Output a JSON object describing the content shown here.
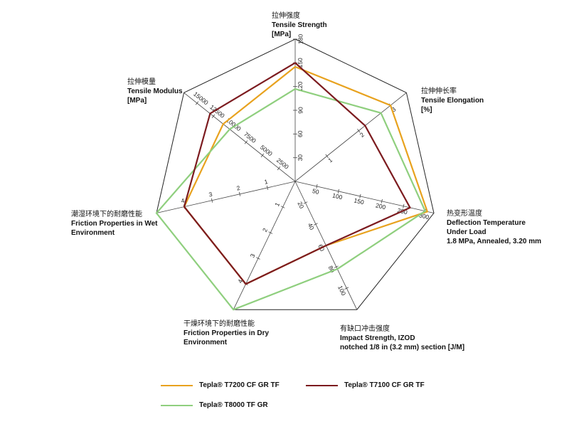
{
  "chart_data": {
    "type": "radar",
    "axes": [
      {
        "key": "tensile_strength",
        "cn": "拉伸强度",
        "lines": [
          "Tensile Strength",
          "[MPa]"
        ],
        "max": 180,
        "ticks": [
          {
            "v": 30,
            "l": "30"
          },
          {
            "v": 60,
            "l": "60"
          },
          {
            "v": 90,
            "l": "90"
          },
          {
            "v": 120,
            "l": "120"
          },
          {
            "v": 150,
            "l": "150"
          },
          {
            "v": 180,
            "l": "180"
          }
        ]
      },
      {
        "key": "tensile_elongation",
        "cn": "拉伸伸长率",
        "lines": [
          "Tensile Elongation",
          "[%]"
        ],
        "max": 3.5,
        "ticks": [
          {
            "v": 1,
            "l": "1"
          },
          {
            "v": 2,
            "l": "2"
          },
          {
            "v": 3,
            "l": "3"
          }
        ]
      },
      {
        "key": "deflection_temperature",
        "cn": "热变形温度",
        "lines": [
          "Deflection Temperature",
          "Under Load",
          "1.8 MPa, Annealed, 3.20 mm"
        ],
        "max": 320,
        "ticks": [
          {
            "v": 50,
            "l": "50"
          },
          {
            "v": 100,
            "l": "100"
          },
          {
            "v": 150,
            "l": "150"
          },
          {
            "v": 200,
            "l": "200"
          },
          {
            "v": 250,
            "l": "250"
          },
          {
            "v": 300,
            "l": "300"
          }
        ]
      },
      {
        "key": "impact_strength",
        "cn": "有缺口冲击强度",
        "lines": [
          "Impact Strength, IZOD",
          "notched 1/8 in (3.2 mm) section [J/M]"
        ],
        "max": 120,
        "ticks": [
          {
            "v": 20,
            "l": "20"
          },
          {
            "v": 40,
            "l": "40"
          },
          {
            "v": 60,
            "l": "60"
          },
          {
            "v": 80,
            "l": "80"
          },
          {
            "v": 100,
            "l": "100"
          }
        ]
      },
      {
        "key": "friction_dry",
        "cn": "干燥环境下的耐磨性能",
        "lines": [
          "Friction Properties in Dry",
          "Environment"
        ],
        "max": 5,
        "ticks": [
          {
            "v": 1,
            "l": "1"
          },
          {
            "v": 2,
            "l": "2"
          },
          {
            "v": 3,
            "l": "3"
          },
          {
            "v": 4,
            "l": "4"
          }
        ]
      },
      {
        "key": "friction_wet",
        "cn": "潮湿环境下的耐磨性能",
        "lines": [
          "Friction Properties in Wet",
          "Environment"
        ],
        "max": 5,
        "ticks": [
          {
            "v": 1,
            "l": "1"
          },
          {
            "v": 2,
            "l": "2"
          },
          {
            "v": 3,
            "l": "3"
          },
          {
            "v": 4,
            "l": "4"
          }
        ]
      },
      {
        "key": "tensile_modulus",
        "cn": "拉伸模量",
        "lines": [
          "Tensile Modulus",
          "[MPa]"
        ],
        "max": 17000,
        "ticks": [
          {
            "v": 2500,
            "l": "2500"
          },
          {
            "v": 5000,
            "l": "5000"
          },
          {
            "v": 7500,
            "l": "7500"
          },
          {
            "v": 10000,
            "l": "10000"
          },
          {
            "v": 12500,
            "l": "12500"
          },
          {
            "v": 15000,
            "l": "15000"
          }
        ]
      }
    ],
    "series": [
      {
        "name": "Tepla® T7200 CF GR TF",
        "color": "#e8a21e",
        "values": [
          145,
          3.0,
          305,
          60,
          4,
          4,
          11000
        ]
      },
      {
        "name": "Tepla® T8000 TF GR",
        "color": "#8fcf7e",
        "values": [
          117,
          2.7,
          300,
          82,
          5,
          5,
          10000
        ]
      },
      {
        "name": "Tepla® T7100 CF GR TF",
        "color": "#7c1b1f",
        "values": [
          150,
          2.2,
          265,
          60,
          4,
          4,
          13000
        ]
      }
    ],
    "legend_position": "bottom",
    "grid": true
  }
}
